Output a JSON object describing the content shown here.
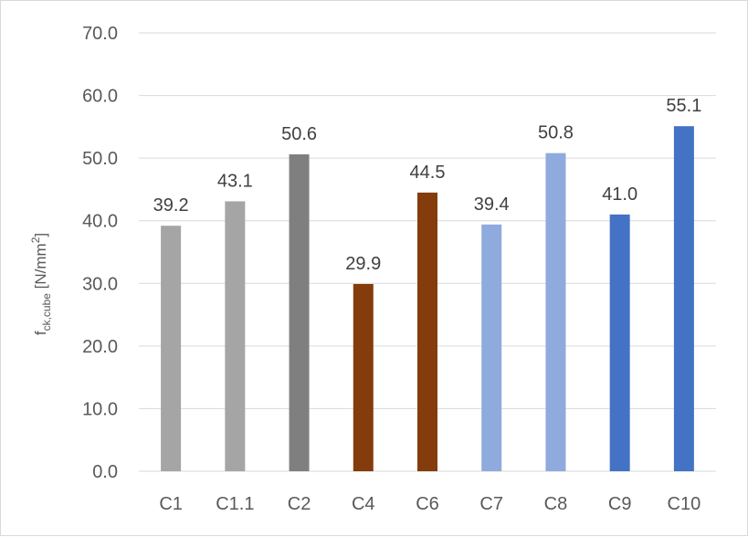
{
  "chart_data": {
    "type": "bar",
    "categories": [
      "C1",
      "C1.1",
      "C2",
      "C4",
      "C6",
      "C7",
      "C8",
      "C9",
      "C10"
    ],
    "values": [
      39.2,
      43.1,
      50.6,
      29.9,
      44.5,
      39.4,
      50.8,
      41.0,
      55.1
    ],
    "value_labels": [
      "39.2",
      "43.1",
      "50.6",
      "29.9",
      "44.5",
      "39.4",
      "50.8",
      "41.0",
      "55.1"
    ],
    "bar_colors": [
      "#a5a5a5",
      "#a5a5a5",
      "#7f7f7f",
      "#843c0c",
      "#843c0c",
      "#8faadc",
      "#8faadc",
      "#4472c4",
      "#4472c4"
    ],
    "title": "",
    "xlabel": "",
    "ylabel": {
      "base": "f",
      "subscript": "ck,cube",
      "unit_prefix": " [N/mm",
      "superscript": "2",
      "unit_suffix": "]"
    },
    "ylim": [
      0,
      70
    ],
    "yticks": [
      "0.0",
      "10.0",
      "20.0",
      "30.0",
      "40.0",
      "50.0",
      "60.0",
      "70.0"
    ],
    "grid": true,
    "legend": "none",
    "gridline_color": "#d9d9d9",
    "axis_color": "#d9d9d9"
  }
}
